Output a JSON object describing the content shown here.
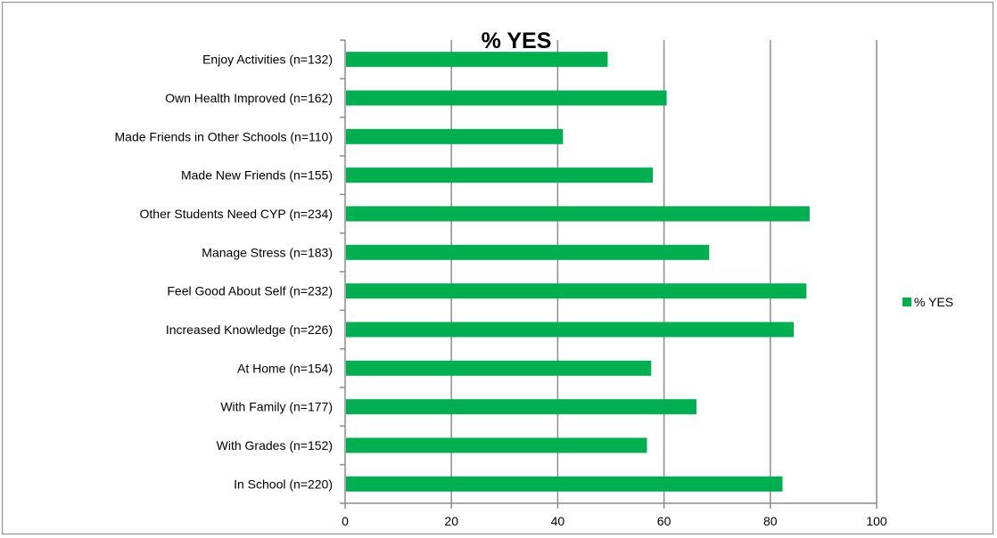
{
  "chart_data": {
    "type": "bar",
    "orientation": "horizontal",
    "title": "% YES",
    "categories": [
      "Enjoy Activities (n=132)",
      "Own Health Improved (n=162)",
      "Made Friends in Other Schools (n=110)",
      "Made New Friends (n=155)",
      "Other Students Need CYP (n=234)",
      "Manage Stress (n=183)",
      "Feel Good About Self (n=232)",
      "Increased Knowledge (n=226)",
      "At Home (n=154)",
      "With Family (n=177)",
      "With Grades (n=152)",
      "In School (n=220)"
    ],
    "series": [
      {
        "name": "% YES",
        "color": "#00b050",
        "values": [
          49.4,
          60.5,
          41.0,
          57.9,
          87.4,
          68.5,
          86.8,
          84.4,
          57.6,
          66.1,
          56.8,
          82.3
        ]
      }
    ],
    "xlim": [
      0,
      100
    ],
    "xticks": [
      "0",
      "20",
      "40",
      "60",
      "80",
      "100"
    ],
    "grid": "vertical",
    "legend_position": "right"
  }
}
